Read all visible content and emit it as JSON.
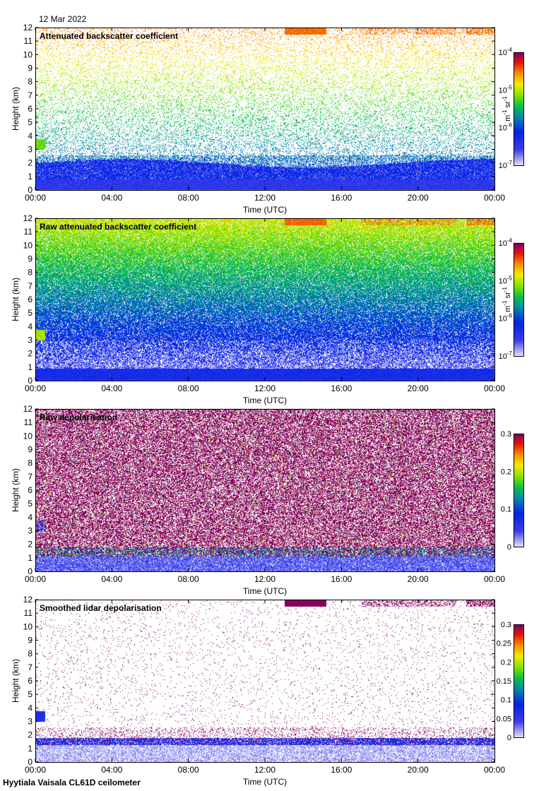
{
  "header": {
    "date": "12 Mar 2022"
  },
  "footer": {
    "instrument": "Hyytiala Vaisala CL61D ceilometer"
  },
  "chart_data": [
    {
      "type": "heatmap",
      "title": "Attenuated backscatter coefficient",
      "xlabel": "Time (UTC)",
      "ylabel": "Height (km)",
      "xticks": [
        "00:00",
        "04:00",
        "08:00",
        "12:00",
        "16:00",
        "20:00",
        "00:00"
      ],
      "yticks": [
        "0",
        "1",
        "2",
        "3",
        "4",
        "5",
        "6",
        "7",
        "8",
        "9",
        "10",
        "11",
        "12"
      ],
      "ylim": [
        0,
        12
      ],
      "xlim_hours": [
        0,
        24
      ],
      "colorbar": {
        "scale": "log",
        "ticks": [
          {
            "base": "10",
            "exp": "-4"
          },
          {
            "base": "10",
            "exp": "-5"
          },
          {
            "base": "10",
            "exp": "-6"
          },
          {
            "base": "10",
            "exp": "-7"
          }
        ],
        "unit": {
          "m": "m",
          "m_exp": "-1",
          "sr": "sr",
          "sr_exp": "-1"
        }
      },
      "field": "sparse_backscatter"
    },
    {
      "type": "heatmap",
      "title": "Raw attenuated backscatter coefficient",
      "xlabel": "Time (UTC)",
      "ylabel": "Height (km)",
      "xticks": [
        "00:00",
        "04:00",
        "08:00",
        "12:00",
        "16:00",
        "20:00",
        "00:00"
      ],
      "yticks": [
        "0",
        "1",
        "2",
        "3",
        "4",
        "5",
        "6",
        "7",
        "8",
        "9",
        "10",
        "11",
        "12"
      ],
      "ylim": [
        0,
        12
      ],
      "xlim_hours": [
        0,
        24
      ],
      "colorbar": {
        "scale": "log",
        "ticks": [
          {
            "base": "10",
            "exp": "-4"
          },
          {
            "base": "10",
            "exp": "-5"
          },
          {
            "base": "10",
            "exp": "-6"
          },
          {
            "base": "10",
            "exp": "-7"
          }
        ],
        "unit": {
          "m": "m",
          "m_exp": "-1",
          "sr": "sr",
          "sr_exp": "-1"
        }
      },
      "field": "raw_backscatter"
    },
    {
      "type": "heatmap",
      "title": "Raw depolarisation",
      "xlabel": "Time (UTC)",
      "ylabel": "Height (km)",
      "xticks": [
        "00:00",
        "04:00",
        "08:00",
        "12:00",
        "16:00",
        "20:00",
        "00:00"
      ],
      "yticks": [
        "0",
        "1",
        "2",
        "3",
        "4",
        "5",
        "6",
        "7",
        "8",
        "9",
        "10",
        "11",
        "12"
      ],
      "ylim": [
        0,
        12
      ],
      "xlim_hours": [
        0,
        24
      ],
      "colorbar": {
        "scale": "linear",
        "range": [
          0,
          0.3
        ],
        "ticks": [
          "0.3",
          "0.2",
          "0.1",
          "0"
        ]
      },
      "field": "raw_depol"
    },
    {
      "type": "heatmap",
      "title": "Smoothed lidar depolarisation",
      "xlabel": "Time (UTC)",
      "ylabel": "Height (km)",
      "xticks": [
        "00:00",
        "04:00",
        "08:00",
        "12:00",
        "16:00",
        "20:00",
        "00:00"
      ],
      "yticks": [
        "0",
        "1",
        "2",
        "3",
        "4",
        "5",
        "6",
        "7",
        "8",
        "9",
        "10",
        "11",
        "12"
      ],
      "ylim": [
        0,
        12
      ],
      "xlim_hours": [
        0,
        24
      ],
      "colorbar": {
        "scale": "linear",
        "range": [
          0,
          0.3
        ],
        "ticks": [
          "0.3",
          "0.25",
          "0.2",
          "0.15",
          "0.1",
          "0.05",
          "0"
        ]
      },
      "field": "smoothed_depol"
    }
  ]
}
